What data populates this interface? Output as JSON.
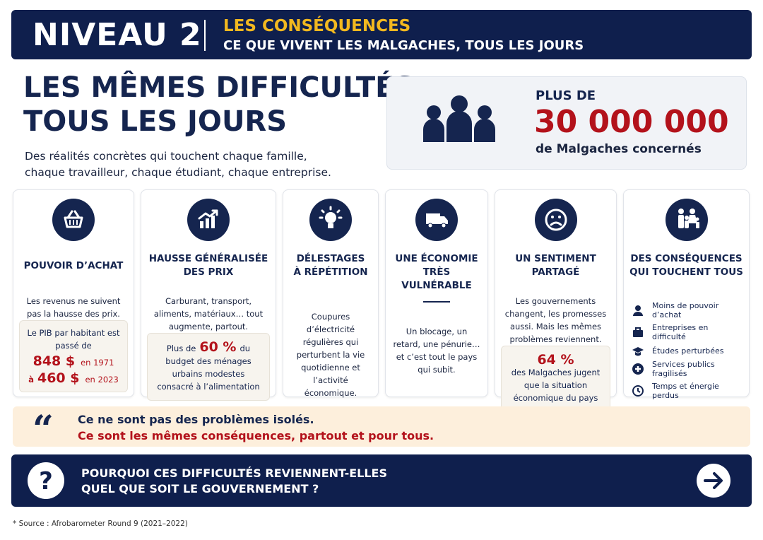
{
  "header": {
    "level": "NIVEAU 2",
    "title": "LES CONSÉQUENCES",
    "subtitle": "CE QUE VIVENT LES MALGACHES, TOUS LES JOURS"
  },
  "hero": {
    "title_lines": [
      "LES MÊMES DIFFICULTÉS,",
      "TOUS LES JOURS"
    ],
    "text_lines": [
      "Des réalités concrètes qui touchent chaque famille,",
      "chaque travailleur, chaque étudiant, chaque entreprise."
    ]
  },
  "stat": {
    "prefix": "PLUS DE",
    "number": "30 000 000",
    "label": "de Malgaches concernés"
  },
  "cards": [
    {
      "title_lines": [
        "POUVOIR D’ACHAT"
      ],
      "text": "Les revenus ne suivent pas la hausse des prix.",
      "box": {
        "text": "Le PIB par habitant est passé de",
        "rows": [
          {
            "value": "848 $",
            "suffix": "en 1971"
          },
          {
            "prefix": "à",
            "value": "460 $",
            "suffix": "en 2023"
          }
        ]
      }
    },
    {
      "title_lines": [
        "HAUSSE GÉNÉRALISÉE",
        "DES PRIX"
      ],
      "text": "Carburant, transport, aliments, matériaux… tout augmente, partout.",
      "box": {
        "prefix": "Plus de",
        "value": "60 %",
        "suffix": "du budget des ménages urbains modestes consacré à l’alimentation"
      }
    },
    {
      "title_lines": [
        "DÉLESTAGES",
        "À RÉPÉTITION"
      ],
      "text": "Coupures d’électricité régulières qui perturbent la vie quotidienne et l’activité économique."
    },
    {
      "title_lines": [
        "UNE ÉCONOMIE",
        "TRÈS VULNÉRABLE"
      ],
      "text": "Un blocage, un retard, une pénurie… et c’est tout le pays qui subit."
    },
    {
      "title_lines": [
        "UN SENTIMENT",
        "PARTAGÉ"
      ],
      "text": "Les gouvernements changent, les promesses aussi. Mais les mêmes problèmes reviennent.",
      "box": {
        "value": "64 %",
        "suffix": "des Malgaches jugent que la situation économique du pays est mauvaise*"
      }
    },
    {
      "title_lines": [
        "DES CONSÉQUENCES",
        "QUI TOUCHENT TOUS"
      ],
      "items": [
        "Moins de pouvoir d’achat",
        "Entreprises en difficulté",
        "Études perturbées",
        "Services publics fragilisés",
        "Temps et énergie perdus"
      ]
    }
  ],
  "quote": {
    "line1": "Ce ne sont pas des problèmes isolés.",
    "line2": "Ce sont les mêmes conséquences, partout et pour tous."
  },
  "question": {
    "lines": [
      "POURQUOI CES DIFFICULTÉS REVIENNENT-ELLES",
      "QUEL QUE SOIT LE GOUVERNEMENT ?"
    ]
  },
  "footnote": "* Source : Afrobarometer Round 9 (2021–2022)"
}
